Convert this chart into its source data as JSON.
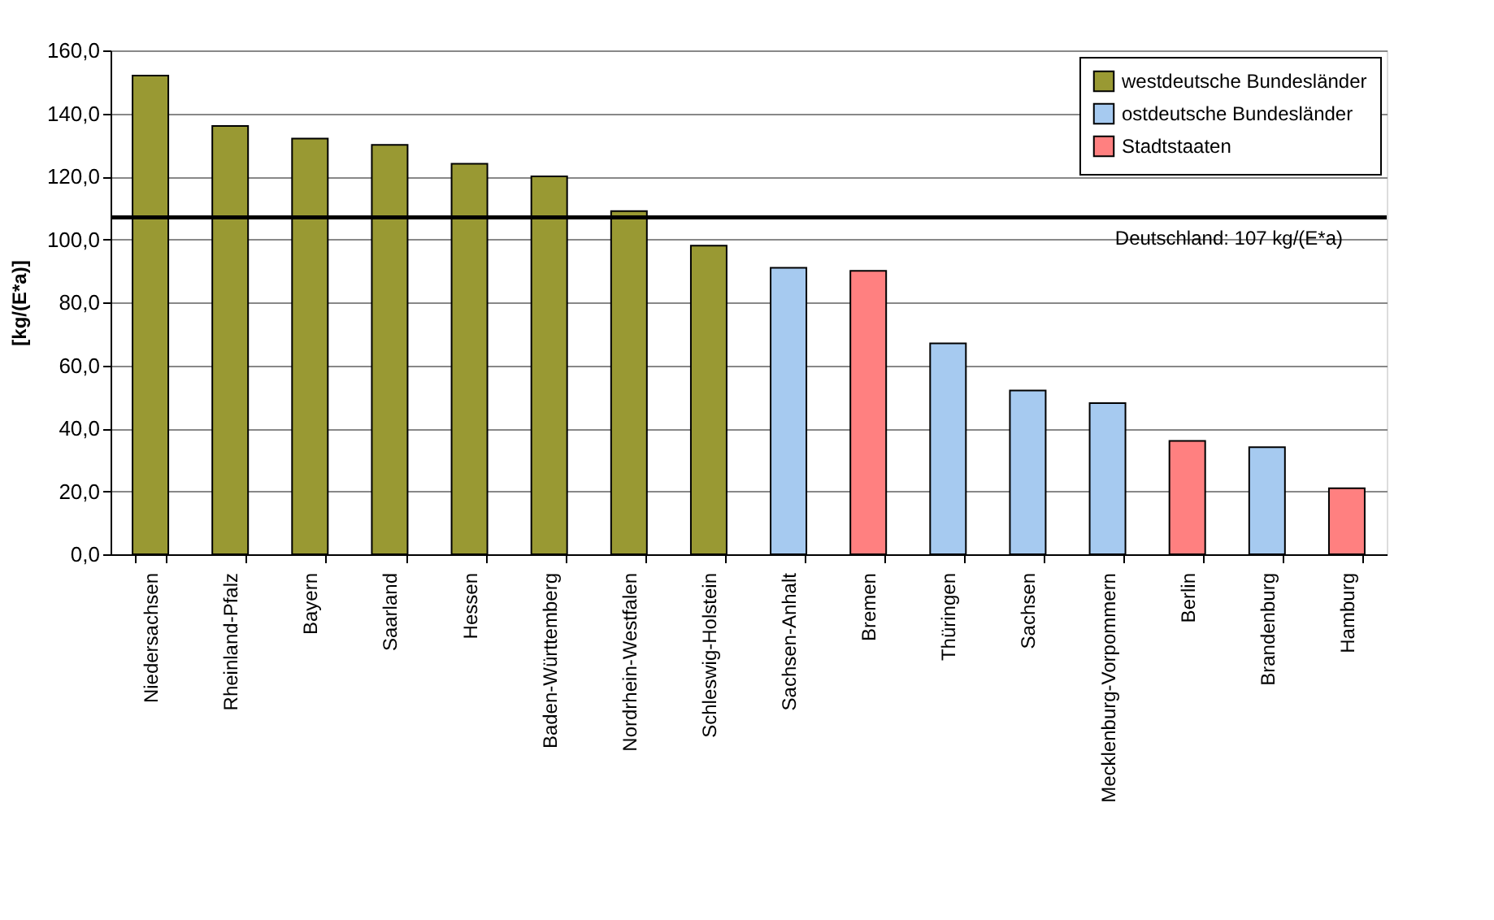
{
  "chart_data": {
    "type": "bar",
    "ylabel": "[kg/(E*a)]",
    "categories": [
      "Niedersachsen",
      "Rheinland-Pfalz",
      "Bayern",
      "Saarland",
      "Hessen",
      "Baden-Württemberg",
      "Nordrhein-Westfalen",
      "Schleswig-Holstein",
      "Sachsen-Anhalt",
      "Bremen",
      "Thüringen",
      "Sachsen",
      "Mecklenburg-Vorpommern",
      "Berlin",
      "Brandenburg",
      "Hamburg"
    ],
    "series": [
      {
        "name": "westdeutsche Bundesländer",
        "color": "#999933",
        "values": [
          152,
          136,
          132,
          130,
          124,
          120,
          109,
          98,
          null,
          null,
          null,
          null,
          null,
          null,
          null,
          null
        ]
      },
      {
        "name": "ostdeutsche Bundesländer",
        "color": "#a6caf0",
        "values": [
          null,
          null,
          null,
          null,
          null,
          null,
          null,
          null,
          91,
          null,
          67,
          52,
          48,
          null,
          34,
          null
        ]
      },
      {
        "name": "Stadtstaaten",
        "color": "#ff8080",
        "values": [
          null,
          null,
          null,
          null,
          null,
          null,
          null,
          null,
          null,
          90,
          null,
          null,
          null,
          36,
          null,
          21
        ]
      }
    ],
    "ylim": [
      0,
      160
    ],
    "yticks": [
      {
        "value": 0,
        "label": "0,0"
      },
      {
        "value": 20,
        "label": "20,0"
      },
      {
        "value": 40,
        "label": "40,0"
      },
      {
        "value": 60,
        "label": "60,0"
      },
      {
        "value": 80,
        "label": "80,0"
      },
      {
        "value": 100,
        "label": "100,0"
      },
      {
        "value": 120,
        "label": "120,0"
      },
      {
        "value": 140,
        "label": "140,0"
      },
      {
        "value": 160,
        "label": "160,0"
      }
    ],
    "ref_lines": [
      {
        "axis": "y",
        "value": 107,
        "label": "Deutschland: 107 kg/(E*a)",
        "color": "#000000"
      }
    ],
    "grid": "y",
    "legend": "top right"
  }
}
